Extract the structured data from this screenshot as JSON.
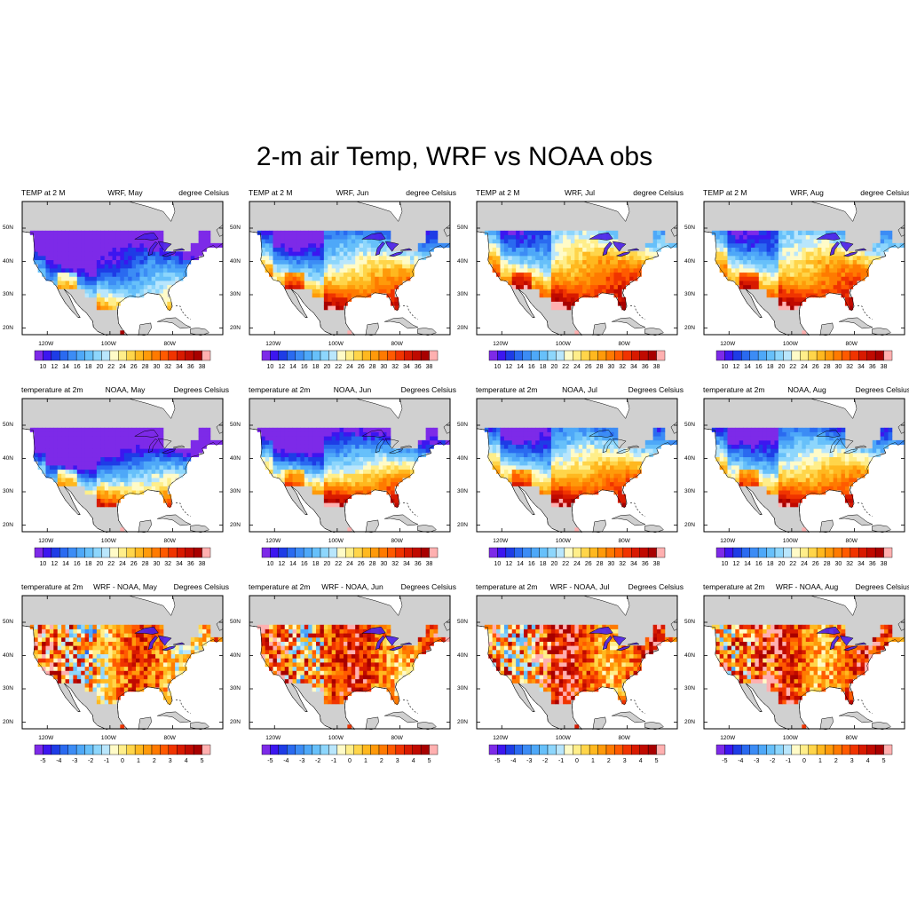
{
  "title": "2-m air Temp, WRF vs NOAA obs",
  "map": {
    "lat_ticks": [
      "50N",
      "40N",
      "30N",
      "20N"
    ],
    "lon_ticks": [
      "120W",
      "100W",
      "80W"
    ],
    "land_color": "#d0d0d0",
    "ocean_color": "#ffffff"
  },
  "colorbars": {
    "temperature": {
      "labels": [
        "10",
        "12",
        "14",
        "16",
        "18",
        "20",
        "22",
        "24",
        "26",
        "28",
        "30",
        "32",
        "34",
        "36",
        "38"
      ],
      "colors": [
        "#7d2ae8",
        "#3c16f0",
        "#1e3ce6",
        "#2a6af0",
        "#3c8cf5",
        "#4ea8f8",
        "#67c0fa",
        "#8dd6fc",
        "#b9e6fc",
        "#fffbc8",
        "#ffee8a",
        "#ffd54a",
        "#ffb81f",
        "#ff9a0a",
        "#ff7a00",
        "#ff5a00",
        "#f03400",
        "#d81a00",
        "#c00a00",
        "#a80000",
        "#ffb0b0"
      ]
    },
    "difference": {
      "labels": [
        "-5",
        "-4",
        "-3",
        "-2",
        "-1",
        "0",
        "1",
        "2",
        "3",
        "4",
        "5"
      ],
      "colors": [
        "#7d2ae8",
        "#3c16f0",
        "#1e3ce6",
        "#2a6af0",
        "#3c8cf5",
        "#4ea8f8",
        "#67c0fa",
        "#8dd6fc",
        "#b9e6fc",
        "#fffbc8",
        "#ffee8a",
        "#ffd54a",
        "#ffb81f",
        "#ff9a0a",
        "#ff7a00",
        "#ff5a00",
        "#f03400",
        "#d81a00",
        "#c00a00",
        "#a80000",
        "#ffb0b0"
      ]
    }
  },
  "panels": [
    {
      "left": "TEMP at 2 M",
      "center": "WRF, May",
      "right": "degree Celsius",
      "scale": "temperature",
      "field": {
        "base": 12,
        "amp": 7,
        "lat_grad": 0.35,
        "west_cool": 2
      }
    },
    {
      "left": "TEMP at 2 M",
      "center": "WRF, Jun",
      "right": "degree Celsius",
      "scale": "temperature",
      "field": {
        "base": 22,
        "amp": 6,
        "lat_grad": 0.35,
        "west_cool": 3
      }
    },
    {
      "left": "TEMP at 2 M",
      "center": "WRF, Jul",
      "right": "degree Celsius",
      "scale": "temperature",
      "field": {
        "base": 26,
        "amp": 6,
        "lat_grad": 0.3,
        "west_cool": 3
      }
    },
    {
      "left": "TEMP at 2 M",
      "center": "WRF, Aug",
      "right": "degree Celsius",
      "scale": "temperature",
      "field": {
        "base": 25,
        "amp": 6,
        "lat_grad": 0.3,
        "west_cool": 3
      }
    },
    {
      "left": "temperature at 2m",
      "center": "NOAA, May",
      "right": "Degrees Celsius",
      "scale": "temperature",
      "field": {
        "base": 12,
        "amp": 6,
        "lat_grad": 0.5,
        "west_cool": 3
      }
    },
    {
      "left": "temperature at 2m",
      "center": "NOAA, Jun",
      "right": "Degrees Celsius",
      "scale": "temperature",
      "field": {
        "base": 19,
        "amp": 5,
        "lat_grad": 0.45,
        "west_cool": 3
      }
    },
    {
      "left": "temperature at 2m",
      "center": "NOAA, Jul",
      "right": "Degrees Celsius",
      "scale": "temperature",
      "field": {
        "base": 23,
        "amp": 5,
        "lat_grad": 0.35,
        "west_cool": 3
      }
    },
    {
      "left": "temperature at 2m",
      "center": "NOAA, Aug",
      "right": "Degrees Celsius",
      "scale": "temperature",
      "field": {
        "base": 22,
        "amp": 5,
        "lat_grad": 0.35,
        "west_cool": 3
      }
    },
    {
      "left": "temperature at 2m",
      "center": "WRF - NOAA, May",
      "right": "Degrees Celsius",
      "scale": "difference",
      "field": {
        "base": 1.5,
        "amp": 2.5,
        "lat_grad": 0,
        "west_cool": 1
      }
    },
    {
      "left": "temperature at 2m",
      "center": "WRF - NOAA, Jun",
      "right": "Degrees Celsius",
      "scale": "difference",
      "field": {
        "base": 2.5,
        "amp": 2.5,
        "lat_grad": 0,
        "west_cool": 1
      }
    },
    {
      "left": "temperature at 2m",
      "center": "WRF - NOAA, Jul",
      "right": "Degrees Celsius",
      "scale": "difference",
      "field": {
        "base": 2.5,
        "amp": 2.5,
        "lat_grad": 0,
        "west_cool": 1
      }
    },
    {
      "left": "temperature at 2m",
      "center": "WRF - NOAA, Aug",
      "right": "Degrees Celsius",
      "scale": "difference",
      "field": {
        "base": 2.5,
        "amp": 2.5,
        "lat_grad": 0,
        "west_cool": 1
      }
    }
  ]
}
